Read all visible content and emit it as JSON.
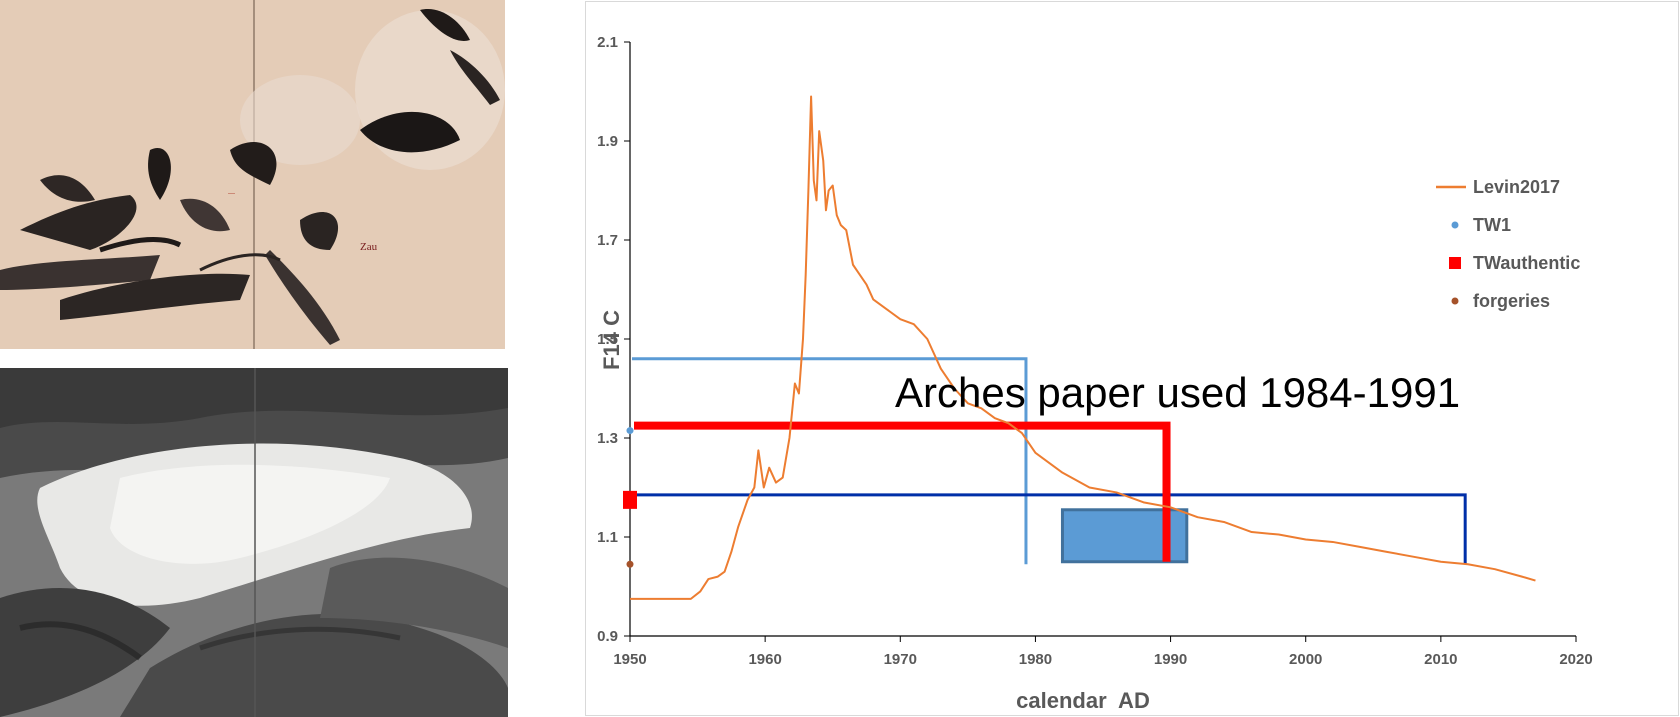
{
  "paintings": [
    {
      "name": "ink-painting-signed",
      "description_hidden": true
    },
    {
      "name": "ink-painting-gray"
    }
  ],
  "chart_data": {
    "type": "line",
    "title": "",
    "xlabel": "calendar  AD",
    "ylabel": "F14 C",
    "xlim": [
      1950,
      2020
    ],
    "ylim": [
      0.9,
      2.1
    ],
    "xticks": [
      1950,
      1960,
      1970,
      1980,
      1990,
      2000,
      2010,
      2020
    ],
    "yticks": [
      "0.9",
      "1.1",
      "1.3",
      "1.5",
      "1.7",
      "1.9",
      "2.1"
    ],
    "grid": false,
    "legend_position": "right",
    "series": [
      {
        "name": "Levin2017",
        "color": "#ed7d31",
        "x": [
          1950,
          1954.5,
          1955.2,
          1955.8,
          1956.5,
          1957,
          1957.5,
          1958,
          1958.7,
          1959.2,
          1959.5,
          1959.9,
          1960.3,
          1960.8,
          1961.3,
          1961.8,
          1962.2,
          1962.5,
          1962.8,
          1963,
          1963.2,
          1963.4,
          1963.6,
          1963.8,
          1964,
          1964.3,
          1964.5,
          1964.7,
          1965,
          1965.3,
          1965.6,
          1966,
          1966.5,
          1967,
          1967.5,
          1968,
          1969,
          1970,
          1971,
          1972,
          1973,
          1974,
          1975,
          1976,
          1977,
          1978,
          1979,
          1980,
          1982,
          1984,
          1986,
          1988,
          1990,
          1992,
          1994,
          1996,
          1998,
          2000,
          2002,
          2004,
          2006,
          2008,
          2010,
          2012,
          2014,
          2016,
          2017
        ],
        "y": [
          0.975,
          0.975,
          0.99,
          1.015,
          1.02,
          1.03,
          1.07,
          1.12,
          1.175,
          1.2,
          1.275,
          1.2,
          1.24,
          1.21,
          1.22,
          1.3,
          1.41,
          1.39,
          1.5,
          1.63,
          1.8,
          1.99,
          1.82,
          1.78,
          1.92,
          1.86,
          1.76,
          1.8,
          1.81,
          1.75,
          1.73,
          1.72,
          1.65,
          1.63,
          1.61,
          1.58,
          1.56,
          1.54,
          1.53,
          1.5,
          1.44,
          1.4,
          1.37,
          1.36,
          1.34,
          1.33,
          1.31,
          1.27,
          1.23,
          1.2,
          1.19,
          1.17,
          1.16,
          1.14,
          1.13,
          1.11,
          1.105,
          1.095,
          1.09,
          1.08,
          1.07,
          1.06,
          1.05,
          1.045,
          1.035,
          1.02,
          1.012
        ]
      },
      {
        "name": "TW1",
        "color": "#5b9bd5",
        "marker": "circle",
        "x": [
          1950
        ],
        "y": [
          1.315
        ]
      },
      {
        "name": "TWauthentic",
        "color": "#ff0000",
        "marker": "square",
        "x": [
          1950
        ],
        "y": [
          1.175
        ]
      },
      {
        "name": "forgeries",
        "color": "#a5522a",
        "marker": "circle",
        "x": [
          1950
        ],
        "y": [
          1.045
        ]
      }
    ],
    "reference_lines": [
      {
        "color": "#5b9bd5",
        "y_level": 1.46,
        "x_end": 1979.3,
        "y_drop_to": 1.045
      },
      {
        "color": "#ff0000",
        "y_level": 1.325,
        "x_end": 1989.7,
        "y_drop_to": 1.05
      },
      {
        "color": "#002fa8",
        "y_level": 1.185,
        "x_end": 2011.8,
        "y_drop_to": 1.045
      }
    ],
    "shaded_range": {
      "x": [
        1982,
        1991.2
      ],
      "y": [
        1.05,
        1.155
      ],
      "fill": "#5b9bd5",
      "stroke": "#41719c"
    },
    "annotation": "Arches paper used 1984-1991"
  }
}
